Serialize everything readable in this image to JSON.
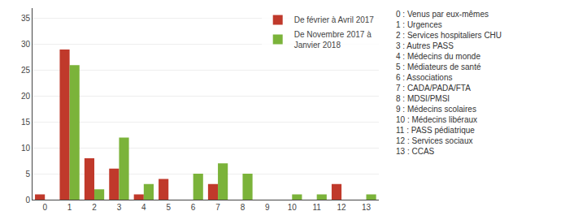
{
  "chart_data": {
    "type": "bar",
    "categories": [
      0,
      1,
      2,
      3,
      4,
      5,
      6,
      7,
      8,
      9,
      10,
      11,
      12,
      13
    ],
    "series": [
      {
        "name": "De février à Avril 2017",
        "color": "#c0392b",
        "values": [
          1,
          29,
          8,
          6,
          1,
          4,
          0,
          3,
          0,
          0,
          0,
          0,
          3,
          0
        ]
      },
      {
        "name": "De Novembre 2017 à\nJanvier 2018",
        "color": "#7bb33a",
        "values": [
          0,
          26,
          2,
          12,
          3,
          0,
          5,
          7,
          5,
          0,
          1,
          1,
          0,
          1
        ]
      }
    ],
    "ylim": [
      0,
      37
    ],
    "yticks": [
      0,
      5,
      10,
      15,
      20,
      25,
      30,
      35
    ],
    "grid": true,
    "legend": "upper right",
    "annotations": [
      "0 : Venus par eux-mêmes",
      "1 : Urgences",
      "2 : Services hospitaliers CHU",
      "3 : Autres PASS",
      "4 : Médecins du monde",
      "5 : Médiateurs de santé",
      "6 : Associations",
      "7 : CADA/PADA/FTA",
      "8 : MDSI/PMSI",
      "9 : Médecins scolaires",
      "10 : Médecins libéraux",
      "11 : PASS pédiatrique",
      "12 : Services sociaux",
      "13 : CCAS"
    ]
  }
}
